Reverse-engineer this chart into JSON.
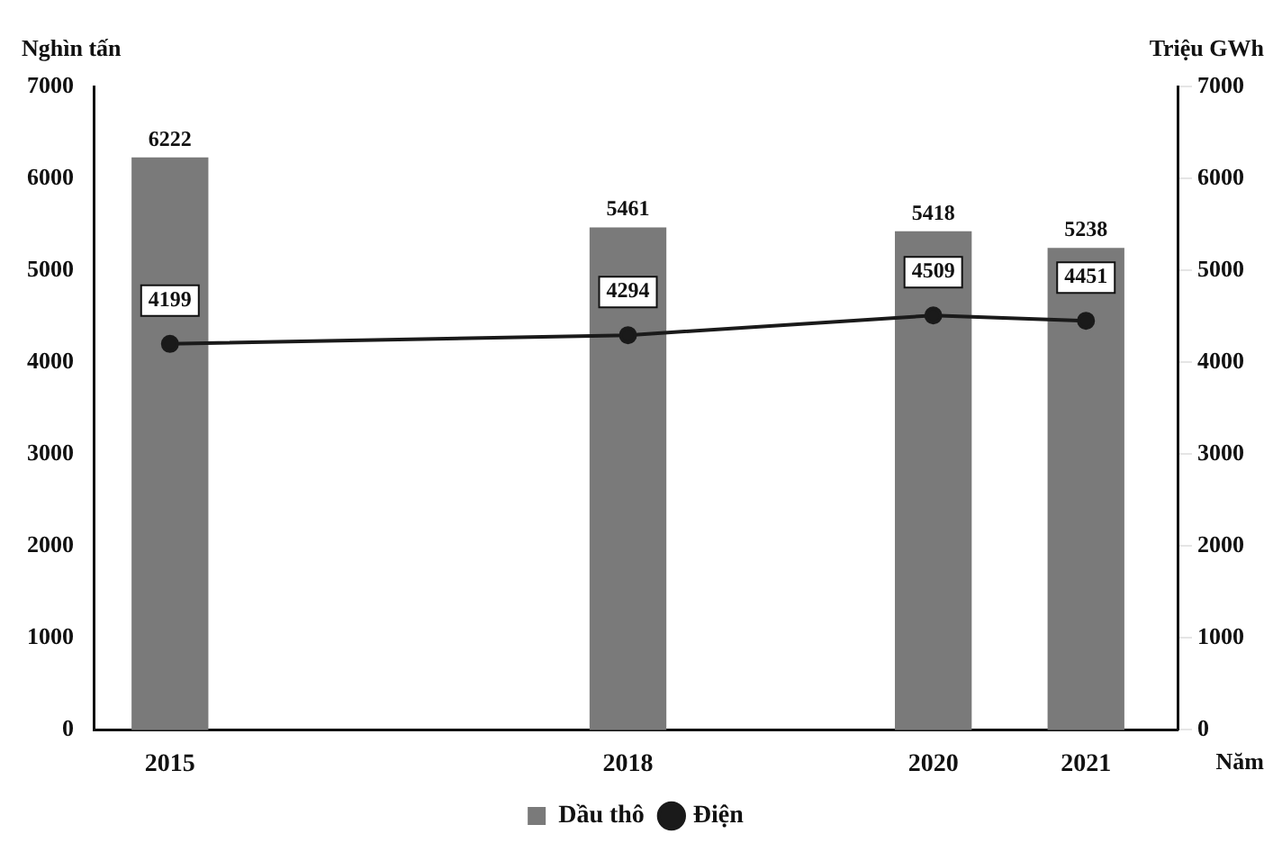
{
  "chart_data": {
    "type": "bar",
    "ylabel": "Nghìn tấn",
    "y2label": "Triệu GWh",
    "xlabel": "Năm",
    "x": [
      2015,
      2018,
      2020,
      2021
    ],
    "xlim": [
      2014.5,
      2021.6
    ],
    "xticks": [
      2015,
      2018,
      2020,
      2021
    ],
    "ylim": [
      0,
      7000
    ],
    "yticks": [
      0,
      1000,
      2000,
      3000,
      4000,
      5000,
      6000,
      7000
    ],
    "y2lim": [
      0,
      7000
    ],
    "y2ticks": [
      0,
      1000,
      2000,
      3000,
      4000,
      5000,
      6000,
      7000
    ],
    "series": [
      {
        "name": "Dầu thô",
        "color": "#7a7a7a",
        "values": [
          6222,
          5461,
          5418,
          5238
        ]
      },
      {
        "name": "Điện",
        "type": "line",
        "axis": "y2",
        "color": "#1a1a1a",
        "values": [
          4199,
          4294,
          4509,
          4451
        ],
        "marker": "circle"
      }
    ],
    "data_labels": true,
    "legend": "bottom",
    "grid": false
  }
}
